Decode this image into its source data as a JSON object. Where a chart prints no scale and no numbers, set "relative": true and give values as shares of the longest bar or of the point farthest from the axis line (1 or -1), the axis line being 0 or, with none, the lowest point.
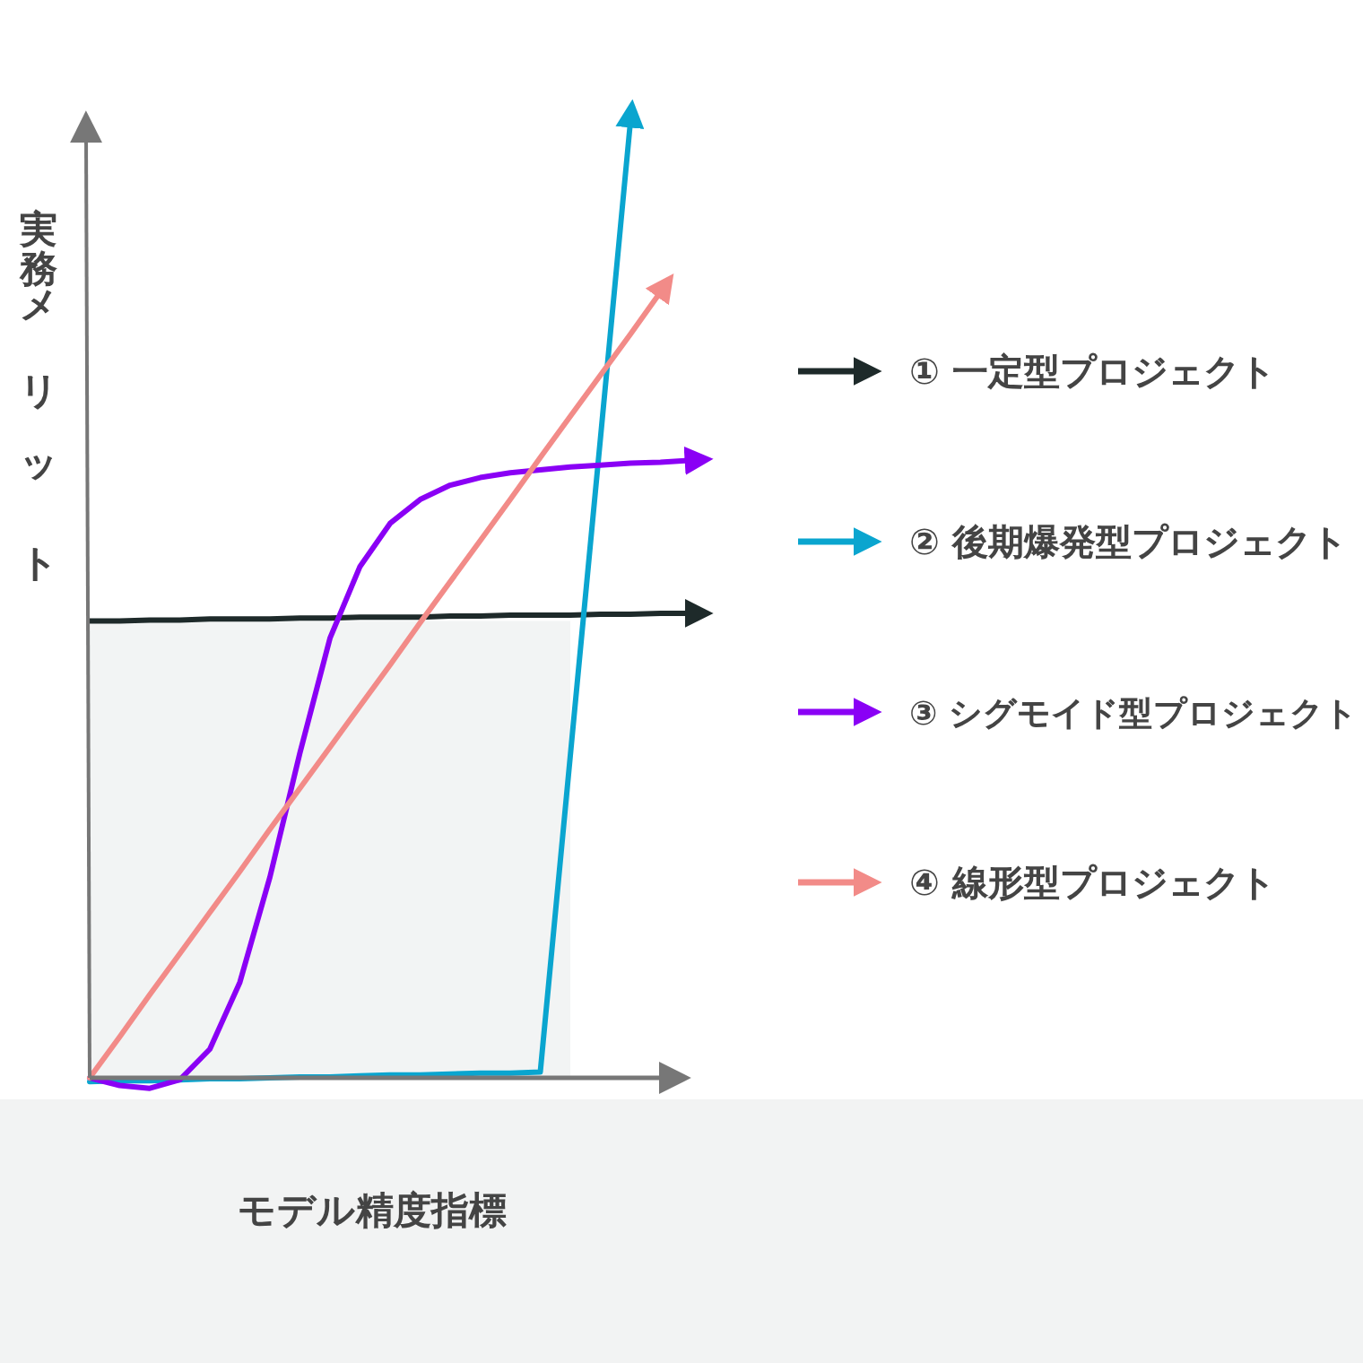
{
  "chart_data": {
    "type": "line",
    "relative": true,
    "xlabel": "モデル精度指標",
    "ylabel": "実務メリット",
    "legend": "right",
    "categories": [
      null,
      null,
      null,
      null,
      null,
      null,
      null,
      null,
      null,
      null,
      null,
      null,
      null,
      null,
      null,
      null,
      null,
      null,
      null,
      null,
      null
    ],
    "series": [
      {
        "type": "area",
        "color": "#f2f4f4",
        "values": [
          0.478,
          0.478,
          0.478,
          0.478,
          0.478,
          0.478,
          0.478,
          0.478,
          0.478,
          0.478,
          0.478,
          0.478,
          0.478,
          0.478,
          0.478,
          0.478,
          0.478,
          null,
          null,
          null,
          null
        ]
      },
      {
        "name": "① 一定型プロジェクト",
        "color": "#1e2a2a",
        "values": [
          0.478,
          0.478,
          0.479,
          0.479,
          0.48,
          0.48,
          0.48,
          0.481,
          0.481,
          0.482,
          0.482,
          0.482,
          0.483,
          0.483,
          0.484,
          0.484,
          0.484,
          0.485,
          0.485,
          0.486,
          0.486
        ]
      },
      {
        "name": "② 後期爆発型プロジェクト",
        "color": "#0aa5cf",
        "values": [
          -0.004,
          -0.003,
          -0.003,
          -0.002,
          -0.001,
          -0.001,
          0,
          0.001,
          0.001,
          0.002,
          0.003,
          0.003,
          0.004,
          0.005,
          0.005,
          0.006,
          0.337,
          0.668,
          1.0,
          null,
          null
        ]
      },
      {
        "name": "③ シグモイド型プロジェクト",
        "color": "#8a00f5",
        "values": [
          0,
          -0.008,
          -0.011,
          -0.002,
          0.03,
          0.1,
          0.21,
          0.34,
          0.46,
          0.535,
          0.58,
          0.605,
          0.62,
          0.628,
          0.633,
          0.636,
          0.639,
          0.641,
          0.643,
          0.644,
          0.646
        ]
      },
      {
        "name": "④ 線形型プロジェクト",
        "color": "#f28b88",
        "values": [
          0,
          0.043,
          0.087,
          0.13,
          0.173,
          0.216,
          0.26,
          0.303,
          0.346,
          0.389,
          0.432,
          0.476,
          0.519,
          0.562,
          0.605,
          0.649,
          0.692,
          0.735,
          0.778,
          0.822,
          null
        ]
      }
    ]
  }
}
